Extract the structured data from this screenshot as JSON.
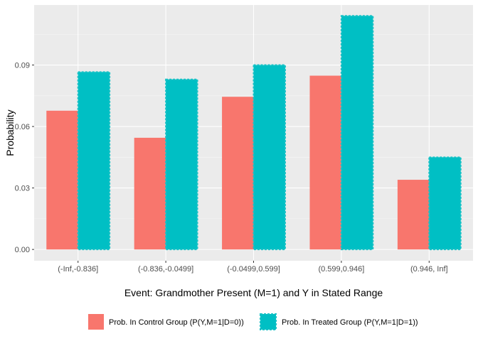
{
  "chart_data": {
    "type": "bar",
    "title": "",
    "xlabel": "Event: Grandmother Present (M=1) and Y in Stated Range",
    "ylabel": "Probability",
    "ylim": [
      -0.0055,
      0.1193
    ],
    "yticks": [
      0.0,
      0.03,
      0.06,
      0.09
    ],
    "ytick_labels": [
      "0.00",
      "0.03",
      "0.06",
      "0.09"
    ],
    "categories": [
      "(-Inf,-0.836]",
      "(-0.836,-0.0499]",
      "(-0.0499,0.599]",
      "(0.599,0.946]",
      "(0.946, Inf]"
    ],
    "series": [
      {
        "name": "Prob. In Control Group (P(Y,M=1|D=0))",
        "color": "#F8766D",
        "values": [
          0.0677,
          0.0545,
          0.0745,
          0.0848,
          0.034
        ]
      },
      {
        "name": "Prob. In Treated Group (P(Y,M=1|D=1))",
        "color": "#00BFC4",
        "values": [
          0.0866,
          0.083,
          0.09,
          0.114,
          0.045
        ]
      }
    ],
    "legend_position": "bottom",
    "grid": true
  }
}
